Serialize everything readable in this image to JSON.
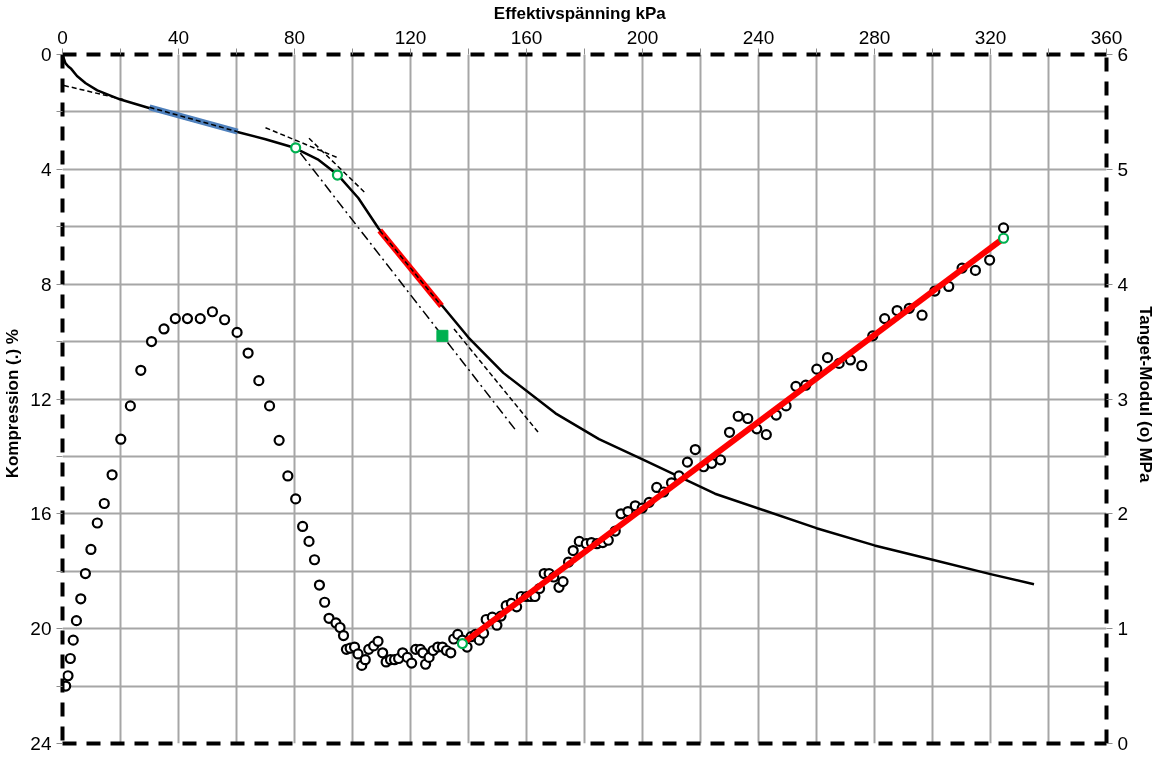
{
  "chart_data": {
    "type": "line",
    "xlabel": "Effektivspänning   kPa",
    "ylabel": "Kompression (.)   %",
    "y2label": "Tanget-Modul (o)   MPa",
    "xlim": [
      0,
      360
    ],
    "xticks": [
      0,
      {
        "value": 20,
        "label": null
      },
      40,
      {
        "value": 60,
        "label": null
      },
      80,
      {
        "value": 100,
        "label": null
      },
      120,
      {
        "value": 140,
        "label": null
      },
      160,
      {
        "value": 180,
        "label": null
      },
      200,
      {
        "value": 220,
        "label": null
      },
      240,
      {
        "value": 260,
        "label": null
      },
      280,
      {
        "value": 300,
        "label": null
      },
      320,
      {
        "value": 340,
        "label": null
      },
      360
    ],
    "ylim": [
      24,
      0
    ],
    "yticks": [
      0,
      {
        "value": 2,
        "label": null
      },
      4,
      {
        "value": 6,
        "label": null
      },
      8,
      {
        "value": 10,
        "label": null
      },
      12,
      {
        "value": 14,
        "label": null
      },
      16,
      {
        "value": 18,
        "label": null
      },
      20,
      {
        "value": 22,
        "label": null
      },
      24
    ],
    "y2lim": [
      0,
      6
    ],
    "y2ticks": [
      0,
      1,
      2,
      3,
      4,
      5,
      6
    ],
    "grid": true,
    "series": [
      {
        "color": "#000000",
        "line_style": "solid",
        "x": [
          0,
          0.5,
          1,
          2,
          3,
          5,
          8,
          12,
          20,
          31,
          45,
          60,
          70,
          80,
          88,
          95,
          102,
          109,
          120,
          131,
          140,
          152,
          170,
          185,
          200,
          225,
          260,
          280,
          300,
          320,
          335
        ],
        "values": [
          0,
          0.15,
          0.3,
          0.42,
          0.5,
          0.75,
          1.0,
          1.25,
          1.57,
          1.9,
          2.3,
          2.69,
          2.95,
          3.25,
          3.65,
          4.2,
          5.0,
          6.06,
          7.4,
          8.76,
          9.86,
          11.09,
          12.5,
          13.4,
          14.1,
          15.3,
          16.5,
          17.1,
          17.6,
          18.1,
          18.45
        ]
      },
      {
        "color": "#000000",
        "line_style": "dashed",
        "x": [
          0.5,
          21
        ],
        "values": [
          1.08,
          1.57
        ]
      },
      {
        "type": "line",
        "color": "#4f81bd",
        "line_style": "solid",
        "x": [
          30,
          60.4
        ],
        "values": [
          1.84,
          2.69
        ]
      },
      {
        "type": "line",
        "color": "#000000",
        "line_style": "dashed",
        "x": [
          30,
          60.4
        ],
        "values": [
          1.84,
          2.69
        ]
      },
      {
        "type": "line",
        "color": "#000000",
        "line_style": "dashed",
        "x": [
          70,
          95
        ],
        "values": [
          2.55,
          3.6
        ]
      },
      {
        "type": "line",
        "color": "#000000",
        "line_style": "dashed",
        "x": [
          85,
          104.6
        ],
        "values": [
          2.92,
          4.84
        ]
      },
      {
        "type": "line",
        "color": "#ff0000",
        "line_style": "solid",
        "x": [
          109.4,
          130.7
        ],
        "values": [
          6.13,
          8.76
        ]
      },
      {
        "type": "line",
        "color": "#000000",
        "line_style": "dashed",
        "x": [
          109.4,
          130.7
        ],
        "values": [
          6.13,
          8.76
        ]
      },
      {
        "type": "line",
        "color": "#000000",
        "line_style": "dashdot",
        "x": [
          82,
          156
        ],
        "values": [
          3.43,
          13.05
        ]
      },
      {
        "type": "line",
        "color": "#000000",
        "line_style": "dashed",
        "x": [
          135,
          164.6
        ],
        "values": [
          9.56,
          13.23
        ]
      },
      {
        "type": "scatter",
        "marker": "circle",
        "color": "#00b050",
        "x": [
          80.4,
          94.8
        ],
        "values": [
          3.25,
          4.2
        ]
      },
      {
        "type": "scatter",
        "marker": "square",
        "color": "#00b050",
        "x": [
          131
        ],
        "values": [
          9.8
        ]
      },
      {
        "type": "scatter",
        "marker": "circle",
        "color": "#000000",
        "axis": "y2",
        "x": [
          1.1,
          1.9,
          2.7,
          3.7,
          4.8,
          6.3,
          7.9,
          9.8,
          12.0,
          14.4,
          17.1,
          20.1,
          23.4,
          27.0,
          30.7,
          35.0,
          38.9,
          43.1,
          47.5,
          51.7,
          55.9,
          60.2,
          64.0,
          67.7,
          71.4,
          74.7,
          77.7,
          80.4,
          82.8,
          85.0,
          86.9,
          88.6,
          90.4,
          91.9,
          94.3,
          95.7,
          96.9,
          97.9,
          99.2,
          100.7,
          101.9,
          103.2,
          104.4,
          105.6,
          107.3,
          108.8,
          110.4,
          111.6,
          113.1,
          114.5,
          115.9,
          117.3,
          118.9,
          120.4,
          121.8,
          123.4,
          124.3,
          125.2,
          126.4,
          127.8,
          129.4,
          131.0,
          132.4,
          133.9,
          134.9,
          136.3,
          137.9,
          139.5,
          140.9,
          142.4,
          143.7,
          145.2,
          146.1,
          148.2,
          149.8,
          151.2,
          153.0,
          154.8,
          156.6,
          158.2,
          160.0,
          161.5,
          162.9,
          164.5,
          166.1,
          167.8,
          169.4,
          171.2,
          172.6,
          174.5,
          176.1,
          178.2,
          180.6,
          182.4,
          184.3,
          186.3,
          188.2,
          190.6,
          192.6,
          195.0,
          197.5,
          199.9,
          202.3,
          204.9,
          207.3,
          210.0,
          212.6,
          215.5,
          218.2,
          221.1,
          223.9,
          226.9,
          230.0,
          233.0,
          236.3,
          239.4,
          242.7,
          246.1,
          249.5,
          252.9,
          256.3,
          260.1,
          263.8,
          267.8,
          271.7,
          275.6,
          279.4,
          283.5,
          287.8,
          292.0,
          296.4,
          300.8,
          305.6,
          310.2,
          314.8,
          319.7,
          324.5
        ],
        "values": [
          0.5,
          0.59,
          0.74,
          0.9,
          1.07,
          1.26,
          1.48,
          1.69,
          1.92,
          2.09,
          2.34,
          2.65,
          2.94,
          3.25,
          3.5,
          3.61,
          3.7,
          3.7,
          3.7,
          3.76,
          3.69,
          3.58,
          3.4,
          3.16,
          2.94,
          2.64,
          2.33,
          2.13,
          1.89,
          1.76,
          1.6,
          1.38,
          1.23,
          1.09,
          1.05,
          1.01,
          0.94,
          0.82,
          0.83,
          0.84,
          0.78,
          0.68,
          0.73,
          0.82,
          0.85,
          0.89,
          0.79,
          0.71,
          0.73,
          0.73,
          0.74,
          0.79,
          0.75,
          0.7,
          0.82,
          0.82,
          0.79,
          0.69,
          0.75,
          0.81,
          0.84,
          0.84,
          0.81,
          0.79,
          0.91,
          0.95,
          0.9,
          0.84,
          0.93,
          0.95,
          0.9,
          0.96,
          1.08,
          1.1,
          1.03,
          1.11,
          1.2,
          1.22,
          1.19,
          1.28,
          1.28,
          1.28,
          1.28,
          1.35,
          1.48,
          1.48,
          1.45,
          1.36,
          1.41,
          1.58,
          1.68,
          1.76,
          1.74,
          1.75,
          1.74,
          1.75,
          1.77,
          1.85,
          2.0,
          2.02,
          2.07,
          2.05,
          2.1,
          2.23,
          2.19,
          2.27,
          2.33,
          2.45,
          2.56,
          2.41,
          2.44,
          2.47,
          2.71,
          2.85,
          2.83,
          2.74,
          2.69,
          2.86,
          2.94,
          3.11,
          3.12,
          3.26,
          3.36,
          3.31,
          3.34,
          3.29,
          3.55,
          3.7,
          3.77,
          3.79,
          3.73,
          3.94,
          3.98,
          4.14,
          4.12,
          4.21,
          4.49
        ]
      },
      {
        "color": "#ff0000",
        "line_style": "solid",
        "axis": "y2",
        "x": [
          137.9,
          324.5
        ],
        "values": [
          0.87,
          4.4
        ]
      },
      {
        "type": "scatter",
        "marker": "circle",
        "color": "#00b050",
        "axis": "y2",
        "x": [
          137.9,
          324.5
        ],
        "values": [
          0.87,
          4.4
        ]
      }
    ]
  }
}
